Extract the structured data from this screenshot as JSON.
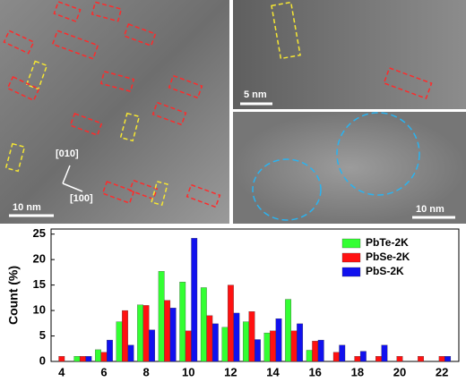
{
  "panels": {
    "left": {
      "scale_bar": "10 nm",
      "direction_1": "[010]",
      "direction_2": "[100]"
    },
    "top_right": {
      "scale_bar": "5 nm"
    },
    "bottom_right": {
      "scale_bar": "10 nm"
    }
  },
  "chart_data": {
    "type": "bar",
    "y_label": "Count (%)",
    "x": [
      4,
      5,
      6,
      7,
      8,
      9,
      10,
      11,
      12,
      13,
      14,
      15,
      16,
      17,
      18,
      19,
      20,
      21,
      22
    ],
    "series": [
      {
        "name": "PbTe-2K",
        "color": "#33ff33",
        "values": [
          0,
          1.0,
          2.3,
          7.8,
          11.1,
          17.7,
          15.6,
          14.5,
          6.7,
          7.8,
          5.6,
          12.2,
          2.2,
          0,
          0,
          0,
          0,
          0,
          0
        ]
      },
      {
        "name": "PbSe-2K",
        "color": "#ff1111",
        "values": [
          1.0,
          1.0,
          1.8,
          10.0,
          11.0,
          12.0,
          6.0,
          9.0,
          15.0,
          9.8,
          6.0,
          6.0,
          4.0,
          1.8,
          1.0,
          1.0,
          1.0,
          1.0,
          1.0
        ]
      },
      {
        "name": "PbS-2K",
        "color": "#1111ee",
        "values": [
          0,
          1.0,
          4.2,
          3.2,
          6.2,
          10.5,
          24.2,
          7.4,
          9.5,
          4.3,
          8.4,
          7.4,
          4.2,
          3.2,
          2.0,
          3.2,
          0,
          0,
          1.0
        ]
      }
    ],
    "xlim": [
      3.5,
      22.8
    ],
    "xticks": [
      4,
      6,
      8,
      10,
      12,
      14,
      16,
      18,
      20,
      22
    ],
    "ylim": [
      0,
      26
    ],
    "yticks": [
      0,
      5,
      10,
      15,
      20,
      25
    ],
    "legend": "upper-right"
  }
}
